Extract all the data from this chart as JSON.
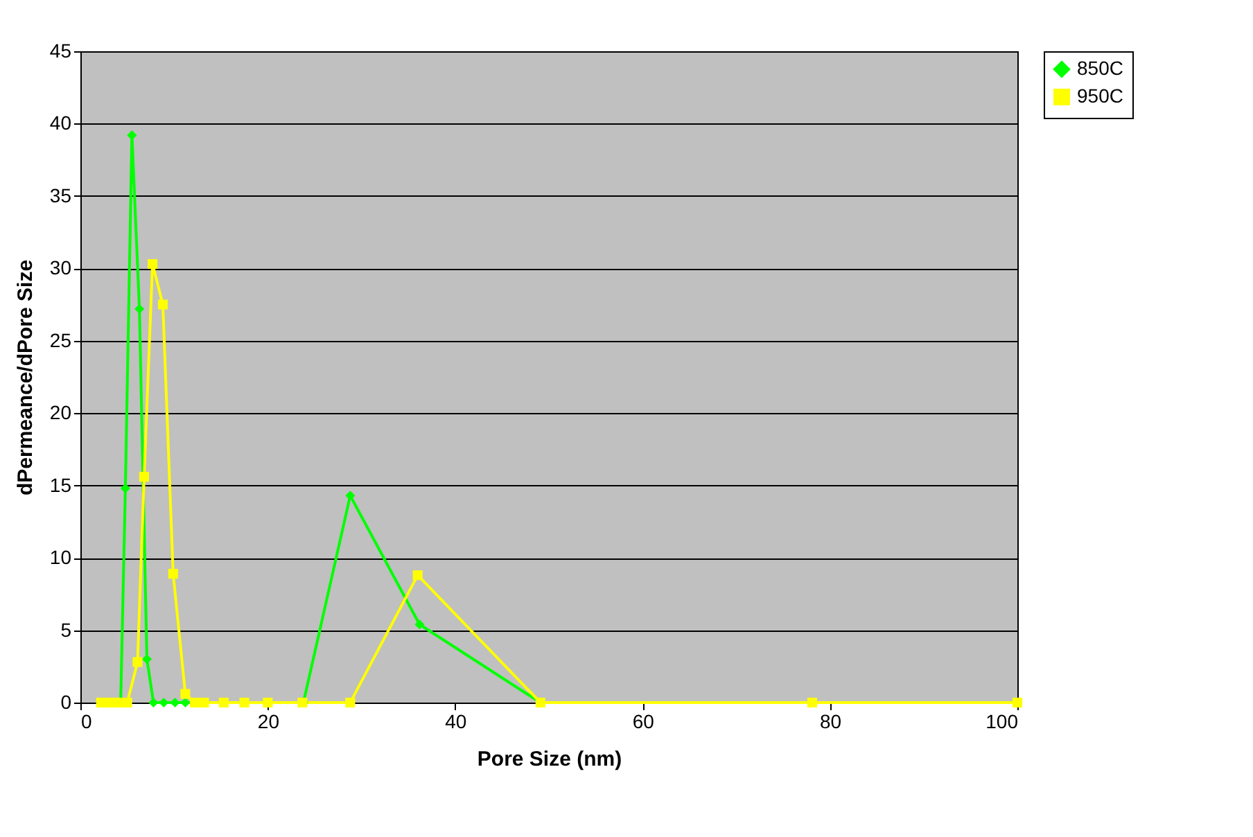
{
  "chart_data": {
    "type": "line",
    "xlabel": "Pore Size (nm)",
    "ylabel": "dPermeance/dPore Size",
    "xlim": [
      0,
      100
    ],
    "xticks": [
      0,
      20,
      40,
      60,
      80,
      100
    ],
    "ylim": [
      0,
      45
    ],
    "yticks": [
      0,
      5,
      10,
      15,
      20,
      25,
      30,
      35,
      40,
      45
    ],
    "grid": "y",
    "legend": "right",
    "line_style": "solid",
    "series": [
      {
        "name": "850C",
        "color": "#00ff00",
        "marker": "diamond",
        "x": [
          4.3,
          4.8,
          5.5,
          6.3,
          7.1,
          7.8,
          8.9,
          10.1,
          11.2,
          12.2,
          13.2,
          15.3,
          17.5,
          20.0,
          23.8,
          28.8,
          36.2,
          49.1,
          78.1
        ],
        "values": [
          0,
          14.8,
          39.2,
          27.2,
          3.0,
          0,
          0,
          0,
          0,
          0,
          0,
          0,
          0,
          0,
          0,
          14.3,
          5.4,
          0,
          0
        ]
      },
      {
        "name": "950C",
        "color": "#ffff00",
        "marker": "square",
        "x": [
          2.2,
          2.7,
          3.2,
          3.7,
          4.3,
          5.0,
          6.1,
          6.8,
          7.7,
          8.8,
          9.9,
          11.2,
          12.2,
          13.2,
          15.3,
          17.5,
          20.0,
          23.7,
          28.8,
          36.0,
          49.1,
          78.1,
          100
        ],
        "values": [
          0,
          0,
          0,
          0,
          0,
          0,
          2.8,
          15.6,
          30.3,
          27.5,
          8.9,
          0.6,
          0,
          0,
          0,
          0,
          0,
          0,
          0,
          8.8,
          0,
          0,
          0
        ]
      }
    ]
  }
}
